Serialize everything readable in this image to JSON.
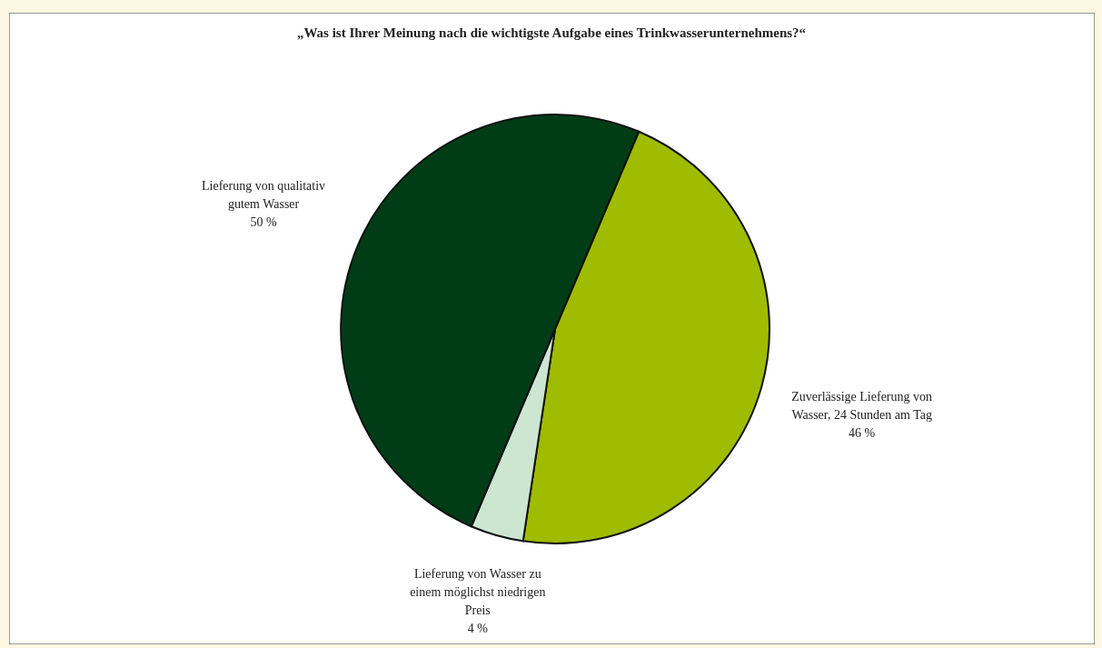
{
  "chart_data": {
    "type": "pie",
    "title": "„Was ist Ihrer Meinung nach die wichtigste Aufgabe eines Trinkwasserunternehmens?“",
    "categories": [
      "Zuverlässige Lieferung von Wasser, 24 Stunden am Tag",
      "Lieferung von Wasser zu einem möglichst niedrigen Preis",
      "Lieferung von qualitativ gutem Wasser"
    ],
    "values": [
      46,
      4,
      50
    ],
    "colors": [
      "#9fbc00",
      "#cce6d2",
      "#003d17"
    ],
    "value_labels": [
      "46 %",
      "4 %",
      "50 %"
    ],
    "legend": false
  }
}
